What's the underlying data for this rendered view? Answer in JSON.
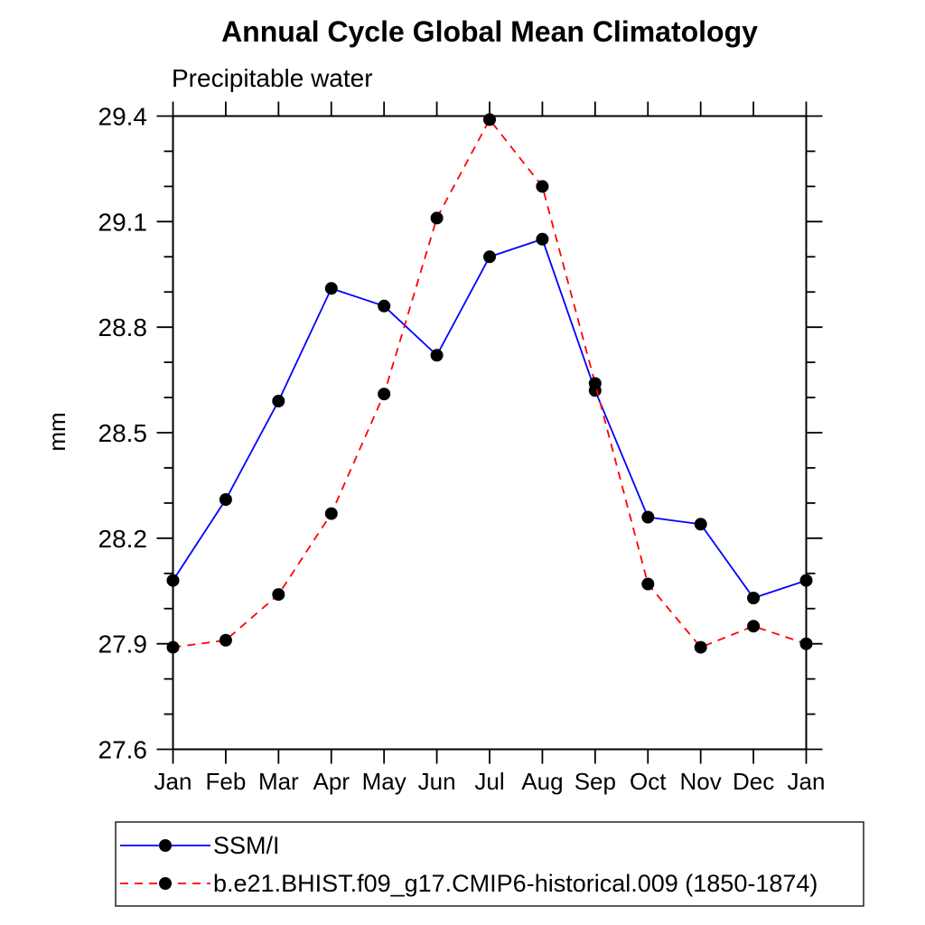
{
  "title": "Annual Cycle Global Mean Climatology",
  "subtitle": "Precipitable water",
  "chart_data": {
    "type": "line",
    "title": "Annual Cycle Global Mean Climatology",
    "subtitle": "Precipitable water",
    "xlabel": "",
    "ylabel": "mm",
    "categories": [
      "Jan",
      "Feb",
      "Mar",
      "Apr",
      "May",
      "Jun",
      "Jul",
      "Aug",
      "Sep",
      "Oct",
      "Nov",
      "Dec",
      "Jan"
    ],
    "series": [
      {
        "name": "SSM/I",
        "line_style": "solid",
        "color": "#0000ff",
        "marker": "filled-circle",
        "marker_color": "#000000",
        "values": [
          28.08,
          28.31,
          28.59,
          28.91,
          28.86,
          28.72,
          29.0,
          29.05,
          28.62,
          28.26,
          28.24,
          28.03,
          28.08
        ]
      },
      {
        "name": "b.e21.BHIST.f09_g17.CMIP6-historical.009 (1850-1874)",
        "line_style": "dashed",
        "color": "#ff0000",
        "marker": "filled-circle",
        "marker_color": "#000000",
        "values": [
          27.89,
          27.91,
          28.04,
          28.27,
          28.61,
          29.11,
          29.39,
          29.2,
          28.64,
          28.07,
          27.89,
          27.95,
          27.9
        ]
      }
    ],
    "ylim": [
      27.6,
      29.4
    ],
    "ytick_labels": [
      "27.6",
      "27.9",
      "28.2",
      "28.5",
      "28.8",
      "29.1",
      "29.4"
    ],
    "yticks_major": [
      27.6,
      27.9,
      28.2,
      28.5,
      28.8,
      29.1,
      29.4
    ],
    "ytick_minor_step": 0.1,
    "grid": false,
    "frame": "box-with-outward-ticks",
    "legend_position": "bottom-left"
  }
}
